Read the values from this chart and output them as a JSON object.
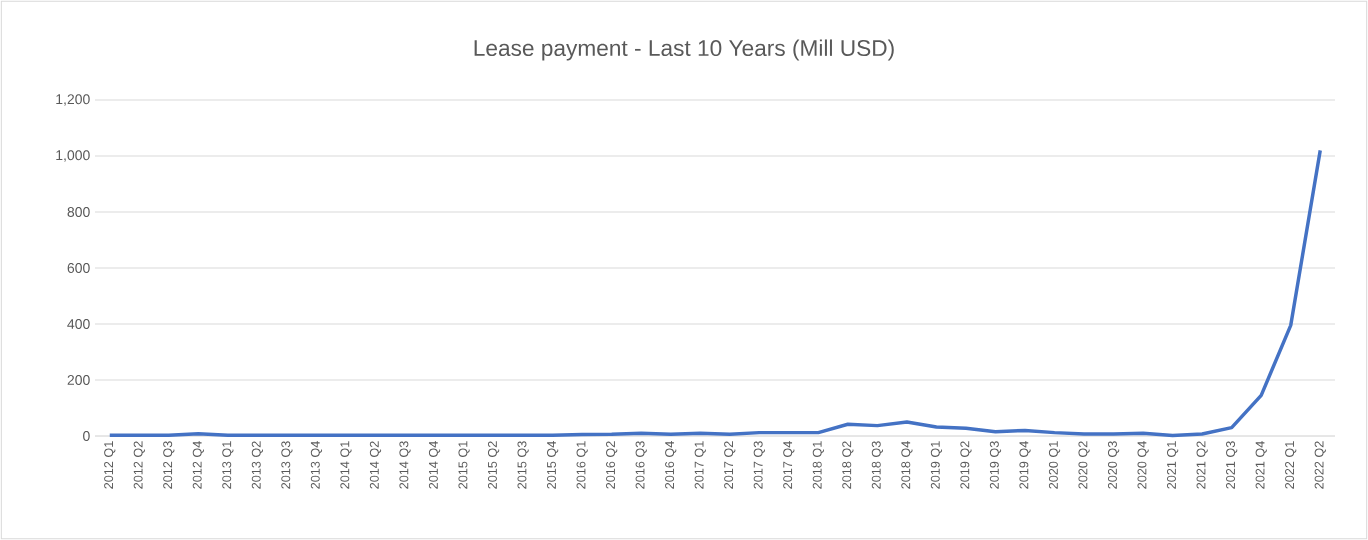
{
  "chart_data": {
    "type": "line",
    "title": "Lease payment - Last 10 Years (Mill USD)",
    "categories": [
      "2012 Q1",
      "2012 Q2",
      "2012 Q3",
      "2012 Q4",
      "2013 Q1",
      "2013 Q2",
      "2013 Q3",
      "2013 Q4",
      "2014 Q1",
      "2014 Q2",
      "2014 Q3",
      "2014 Q4",
      "2015 Q1",
      "2015 Q2",
      "2015 Q3",
      "2015 Q4",
      "2016 Q1",
      "2016 Q2",
      "2016 Q3",
      "2016 Q4",
      "2017 Q1",
      "2017 Q2",
      "2017 Q3",
      "2017 Q4",
      "2018 Q1",
      "2018 Q2",
      "2018 Q3",
      "2018 Q4",
      "2019 Q1",
      "2019 Q2",
      "2019 Q3",
      "2019 Q4",
      "2020 Q1",
      "2020 Q2",
      "2020 Q3",
      "2020 Q4",
      "2021 Q1",
      "2021 Q2",
      "2021 Q3",
      "2021 Q4",
      "2022 Q1",
      "2022 Q2"
    ],
    "values": [
      3,
      3,
      3,
      8,
      3,
      3,
      3,
      3,
      3,
      3,
      3,
      3,
      3,
      3,
      3,
      3,
      5,
      6,
      10,
      6,
      10,
      6,
      12,
      12,
      12,
      42,
      37,
      50,
      32,
      28,
      15,
      20,
      12,
      7,
      7,
      10,
      2,
      7,
      30,
      145,
      395,
      1020
    ],
    "color": "#4472c4",
    "ylim": [
      0,
      1200
    ],
    "yticks": [
      {
        "value": 0,
        "label": "0"
      },
      {
        "value": 200,
        "label": "200"
      },
      {
        "value": 400,
        "label": "400"
      },
      {
        "value": 600,
        "label": "600"
      },
      {
        "value": 800,
        "label": "800"
      },
      {
        "value": 1000,
        "label": "1,000"
      },
      {
        "value": 1200,
        "label": "1,200"
      }
    ],
    "grid": "y",
    "marker": "none",
    "line_style": "solid"
  }
}
